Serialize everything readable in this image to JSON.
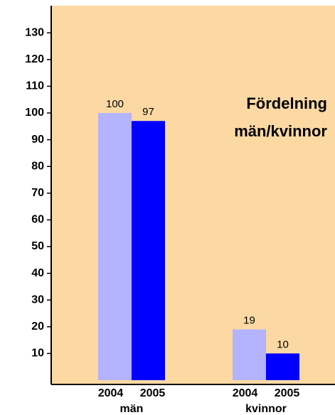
{
  "chart_data": {
    "type": "bar",
    "annotations": [
      "Fördelning",
      "män/kvinnor"
    ],
    "categories": [
      "män",
      "kvinnor"
    ],
    "series": [
      {
        "name": "2004",
        "color": "#b3b3ff",
        "values": [
          100,
          19
        ]
      },
      {
        "name": "2005",
        "color": "#0000ff",
        "values": [
          97,
          10
        ]
      }
    ],
    "ylim": [
      0,
      140
    ],
    "yticks": [
      10,
      20,
      30,
      40,
      50,
      60,
      70,
      80,
      90,
      100,
      110,
      120,
      130
    ],
    "background": "#fcd9a3"
  }
}
